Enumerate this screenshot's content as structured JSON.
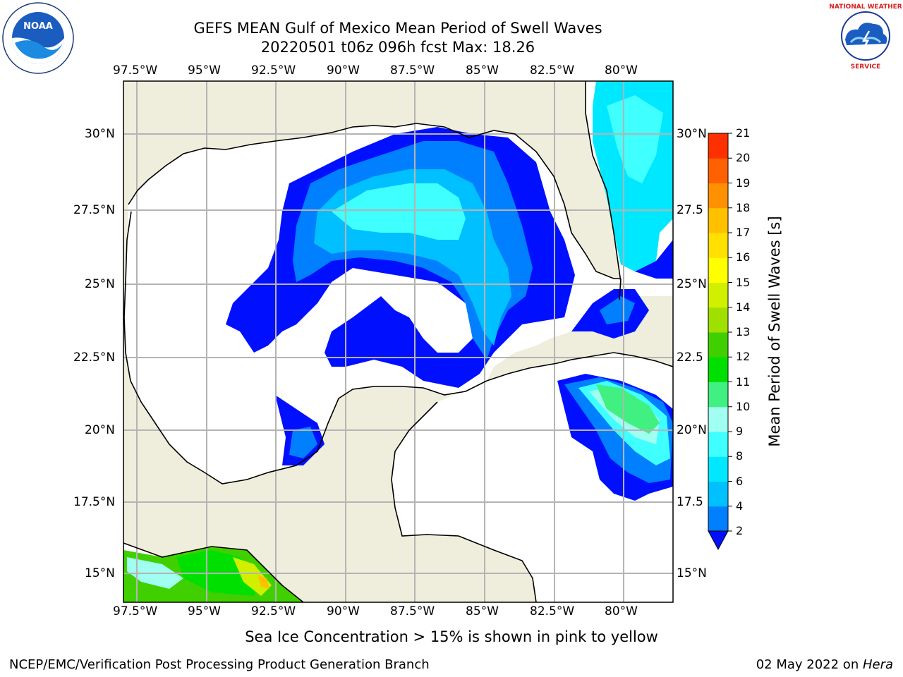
{
  "header": {
    "title_line1": "GEFS MEAN Gulf of Mexico Mean Period of Swell Waves",
    "title_line2": "20220501 t06z 096h fcst   Max: 18.26"
  },
  "logos": {
    "left": "noaa-logo",
    "right": "national-weather-service-logo",
    "right_text": "NATIONAL WEATHER SERVICE"
  },
  "map": {
    "lon_ticks": [
      "97.5°W",
      "95°W",
      "92.5°W",
      "90°W",
      "87.5°W",
      "85°W",
      "82.5°W",
      "80°W"
    ],
    "lat_ticks": [
      "30°N",
      "27.5°N",
      "25°N",
      "22.5°N",
      "20°N",
      "17.5°N",
      "15°N"
    ],
    "lat_ticks_right": [
      "30°N",
      "27.5",
      "25°N",
      "22.5",
      "20°N",
      "17.5",
      "15°N"
    ],
    "land_color": "#efeddc",
    "ocean_color": "#ffffff",
    "grid_color": "#b4b4b4"
  },
  "colorbar": {
    "label": "Mean Period of Swell Waves [s]",
    "levels": [
      "2",
      "4",
      "6",
      "8",
      "9",
      "10",
      "11",
      "12",
      "13",
      "14",
      "15",
      "16",
      "17",
      "18",
      "19",
      "20",
      "21"
    ],
    "colors": [
      "#0040ff",
      "#0080ff",
      "#00c0ff",
      "#00e8ff",
      "#40ffff",
      "#a0fff0",
      "#40f080",
      "#00e000",
      "#40d000",
      "#a0e000",
      "#d0f000",
      "#ffff00",
      "#ffe000",
      "#ffc000",
      "#ff9000",
      "#ff6000",
      "#ff3000",
      "#ff0000"
    ],
    "extend_color": "#0010ff"
  },
  "footer": {
    "note": "Sea Ice Concentration > 15% is shown in pink to yellow",
    "branch": "NCEP/EMC/Verification Post Processing Product Generation Branch",
    "date": "02 May 2022 on ",
    "host": "Hera"
  }
}
